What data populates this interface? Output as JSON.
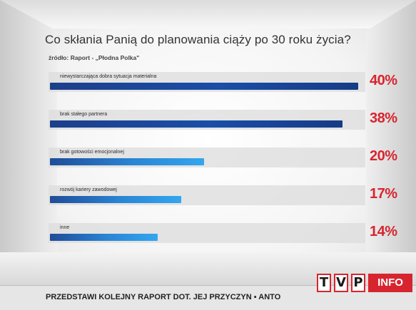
{
  "title": "Co skłania Panią do planowania ciąży po 30 roku życia?",
  "source": "źródło: Raport - „Płodna Polka\"",
  "chart_data": {
    "type": "bar",
    "orientation": "horizontal",
    "categories": [
      "niewystarczająca dobra sytuacja materialna",
      "brak stałego partnera",
      "brak gotowości emocjonalnej",
      "rozwój kariery zawodowej",
      "inne"
    ],
    "values": [
      40,
      38,
      20,
      17,
      14
    ],
    "value_labels": [
      "40%",
      "38%",
      "20%",
      "17%",
      "14%"
    ],
    "title": "Co skłania Panią do planowania ciąży po 30 roku życia?",
    "xlabel": "",
    "ylabel": "",
    "xlim": [
      0,
      40
    ],
    "grid": false,
    "colors": {
      "bar_dark": "#1a4ea8",
      "bar_light": "#33a6ef",
      "value_text": "#d7252f"
    }
  },
  "ticker": {
    "text": "PRZEDSTAWI KOLEJNY RAPORT DOT. JEJ PRZYCZYN ▪ ANTO"
  },
  "logo": {
    "letters": [
      "T",
      "V",
      "P"
    ],
    "suffix": "INFO",
    "brand_color": "#d7252f"
  }
}
